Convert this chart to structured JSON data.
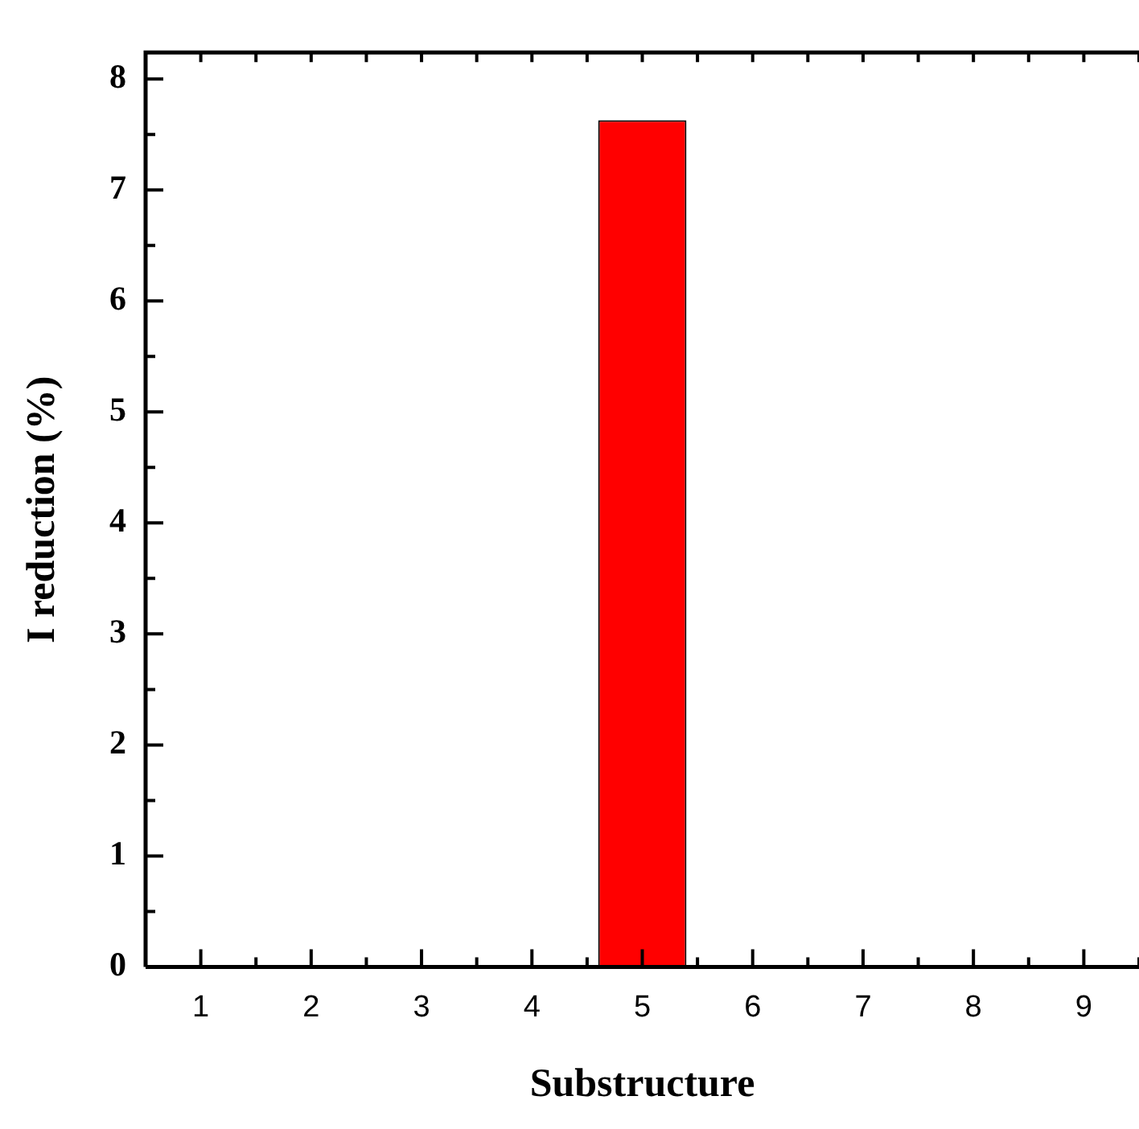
{
  "chart_data": {
    "type": "bar",
    "xlabel": "Substructure",
    "ylabel": "I reduction (%)",
    "categories": [
      "1",
      "2",
      "3",
      "4",
      "5",
      "6",
      "7",
      "8",
      "9"
    ],
    "values": [
      0,
      0,
      0,
      0,
      7.63,
      0,
      0,
      0,
      0
    ],
    "color": "#ff0000",
    "ylim": [
      0,
      8.24
    ],
    "yticks": [
      0,
      {
        "value": 0.5,
        "label": null
      },
      1,
      {
        "value": 1.5,
        "label": null
      },
      2,
      {
        "value": 2.5,
        "label": null
      },
      3,
      {
        "value": 3.5,
        "label": null
      },
      4,
      {
        "value": 4.5,
        "label": null
      },
      5,
      {
        "value": 5.5,
        "label": null
      },
      6,
      {
        "value": 6.5,
        "label": null
      },
      7,
      {
        "value": 7.5,
        "label": null
      },
      8
    ],
    "grid": false,
    "legend": false
  }
}
